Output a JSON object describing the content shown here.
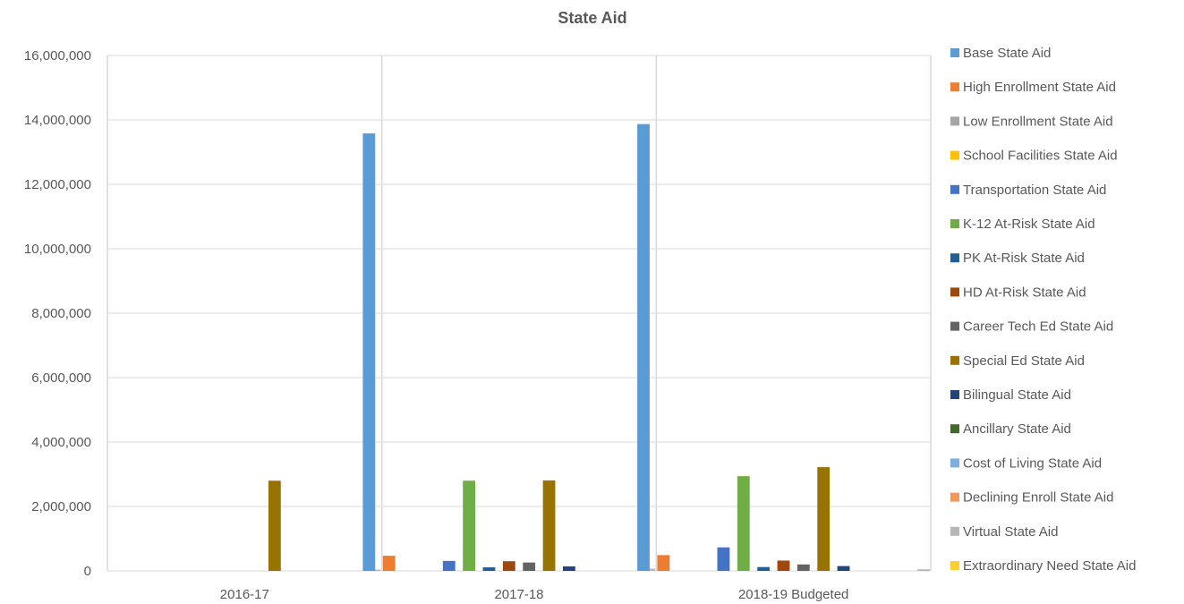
{
  "chart_data": {
    "type": "bar",
    "title": "State Aid",
    "categories": [
      "2016-17",
      "2017-18",
      "2018-19 Budgeted"
    ],
    "ylim": [
      0,
      16000000
    ],
    "yticks": [
      0,
      2000000,
      4000000,
      6000000,
      8000000,
      10000000,
      12000000,
      14000000,
      16000000
    ],
    "ytick_labels": [
      "0",
      "2,000,000",
      "4,000,000",
      "6,000,000",
      "8,000,000",
      "10,000,000",
      "12,000,000",
      "14,000,000",
      "16,000,000"
    ],
    "grid": true,
    "legend_position": "right",
    "series": [
      {
        "name": "Base State Aid",
        "color": "#5b9bd5",
        "values": [
          0,
          13580000,
          13870000
        ]
      },
      {
        "name": "High Enrollment State Aid",
        "color": "#ed7d31",
        "values": [
          0,
          470000,
          490000
        ]
      },
      {
        "name": "Low Enrollment State Aid",
        "color": "#a5a5a5",
        "values": [
          0,
          0,
          0
        ]
      },
      {
        "name": "School Facilities State Aid",
        "color": "#ffc000",
        "values": [
          0,
          0,
          0
        ]
      },
      {
        "name": "Transportation State Aid",
        "color": "#4472c4",
        "values": [
          0,
          310000,
          730000
        ]
      },
      {
        "name": "K-12 At-Risk State Aid",
        "color": "#70ad47",
        "values": [
          0,
          2800000,
          2940000
        ]
      },
      {
        "name": "PK At-Risk State Aid",
        "color": "#255e91",
        "values": [
          0,
          110000,
          120000
        ]
      },
      {
        "name": "HD At-Risk State Aid",
        "color": "#9e480e",
        "values": [
          0,
          300000,
          320000
        ]
      },
      {
        "name": "Career Tech Ed State Aid",
        "color": "#636363",
        "values": [
          0,
          260000,
          200000
        ]
      },
      {
        "name": "Special Ed State Aid",
        "color": "#997300",
        "values": [
          2800000,
          2810000,
          3220000
        ]
      },
      {
        "name": "Bilingual State Aid",
        "color": "#264478",
        "values": [
          0,
          140000,
          150000
        ]
      },
      {
        "name": "Ancillary State Aid",
        "color": "#43682b",
        "values": [
          0,
          0,
          0
        ]
      },
      {
        "name": "Cost of Living State Aid",
        "color": "#7cafdd",
        "values": [
          0,
          0,
          0
        ]
      },
      {
        "name": "Declining Enroll State Aid",
        "color": "#f1975a",
        "values": [
          0,
          0,
          0
        ]
      },
      {
        "name": "Virtual State Aid",
        "color": "#b7b7b7",
        "values": [
          40000,
          70000,
          50000
        ]
      },
      {
        "name": "Extraordinary Need State Aid",
        "color": "#ffcd33",
        "values": [
          0,
          0,
          0
        ]
      }
    ]
  }
}
